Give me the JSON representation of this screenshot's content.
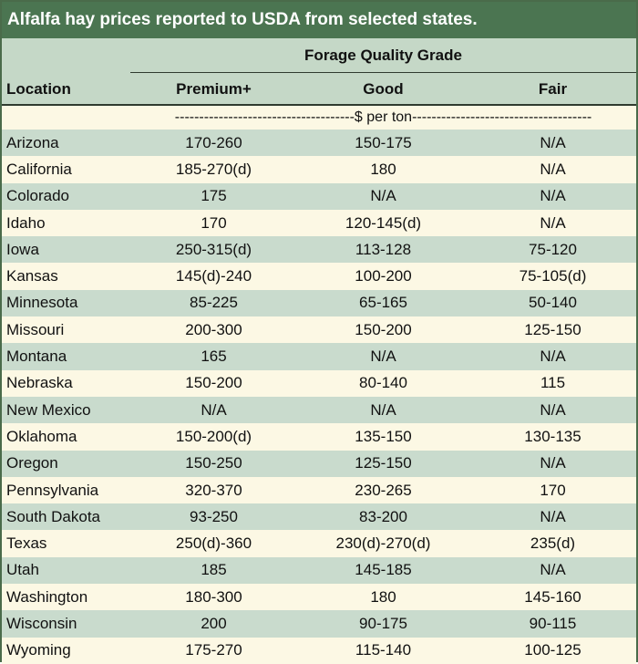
{
  "title": "Alfalfa hay prices reported to USDA from selected states.",
  "header": {
    "group": "Forage Quality Grade",
    "location": "Location",
    "premium": "Premium+",
    "good": "Good",
    "fair": "Fair"
  },
  "unit_row": "-------------------------------------$ per ton-------------------------------------",
  "rows": [
    {
      "location": "Arizona",
      "premium": "170-260",
      "good": "150-175",
      "fair": "N/A"
    },
    {
      "location": "California",
      "premium": "185-270(d)",
      "good": "180",
      "fair": "N/A"
    },
    {
      "location": "Colorado",
      "premium": "175",
      "good": "N/A",
      "fair": "N/A"
    },
    {
      "location": "Idaho",
      "premium": "170",
      "good": "120-145(d)",
      "fair": "N/A"
    },
    {
      "location": "Iowa",
      "premium": "250-315(d)",
      "good": "113-128",
      "fair": "75-120"
    },
    {
      "location": "Kansas",
      "premium": "145(d)-240",
      "good": "100-200",
      "fair": "75-105(d)"
    },
    {
      "location": "Minnesota",
      "premium": "85-225",
      "good": "65-165",
      "fair": "50-140"
    },
    {
      "location": "Missouri",
      "premium": "200-300",
      "good": "150-200",
      "fair": "125-150"
    },
    {
      "location": "Montana",
      "premium": "165",
      "good": "N/A",
      "fair": "N/A"
    },
    {
      "location": "Nebraska",
      "premium": "150-200",
      "good": "80-140",
      "fair": "115"
    },
    {
      "location": "New Mexico",
      "premium": "N/A",
      "good": "N/A",
      "fair": "N/A"
    },
    {
      "location": "Oklahoma",
      "premium": "150-200(d)",
      "good": "135-150",
      "fair": "130-135"
    },
    {
      "location": "Oregon",
      "premium": "150-250",
      "good": "125-150",
      "fair": "N/A"
    },
    {
      "location": "Pennsylvania",
      "premium": "320-370",
      "good": "230-265",
      "fair": "170"
    },
    {
      "location": "South Dakota",
      "premium": "93-250",
      "good": "83-200",
      "fair": "N/A"
    },
    {
      "location": "Texas",
      "premium": "250(d)-360",
      "good": "230(d)-270(d)",
      "fair": "235(d)"
    },
    {
      "location": "Utah",
      "premium": "185",
      "good": "145-185",
      "fair": "N/A"
    },
    {
      "location": "Washington",
      "premium": "180-300",
      "good": "180",
      "fair": "145-160"
    },
    {
      "location": "Wisconsin",
      "premium": "200",
      "good": "90-175",
      "fair": "90-115"
    },
    {
      "location": "Wyoming",
      "premium": "175-270",
      "good": "115-140",
      "fair": "100-125"
    }
  ],
  "colors": {
    "title_bg": "#4b7551",
    "header_bg": "#c5d8c7",
    "band_green": "#c9dbcd",
    "band_cream": "#fcf8e4"
  }
}
